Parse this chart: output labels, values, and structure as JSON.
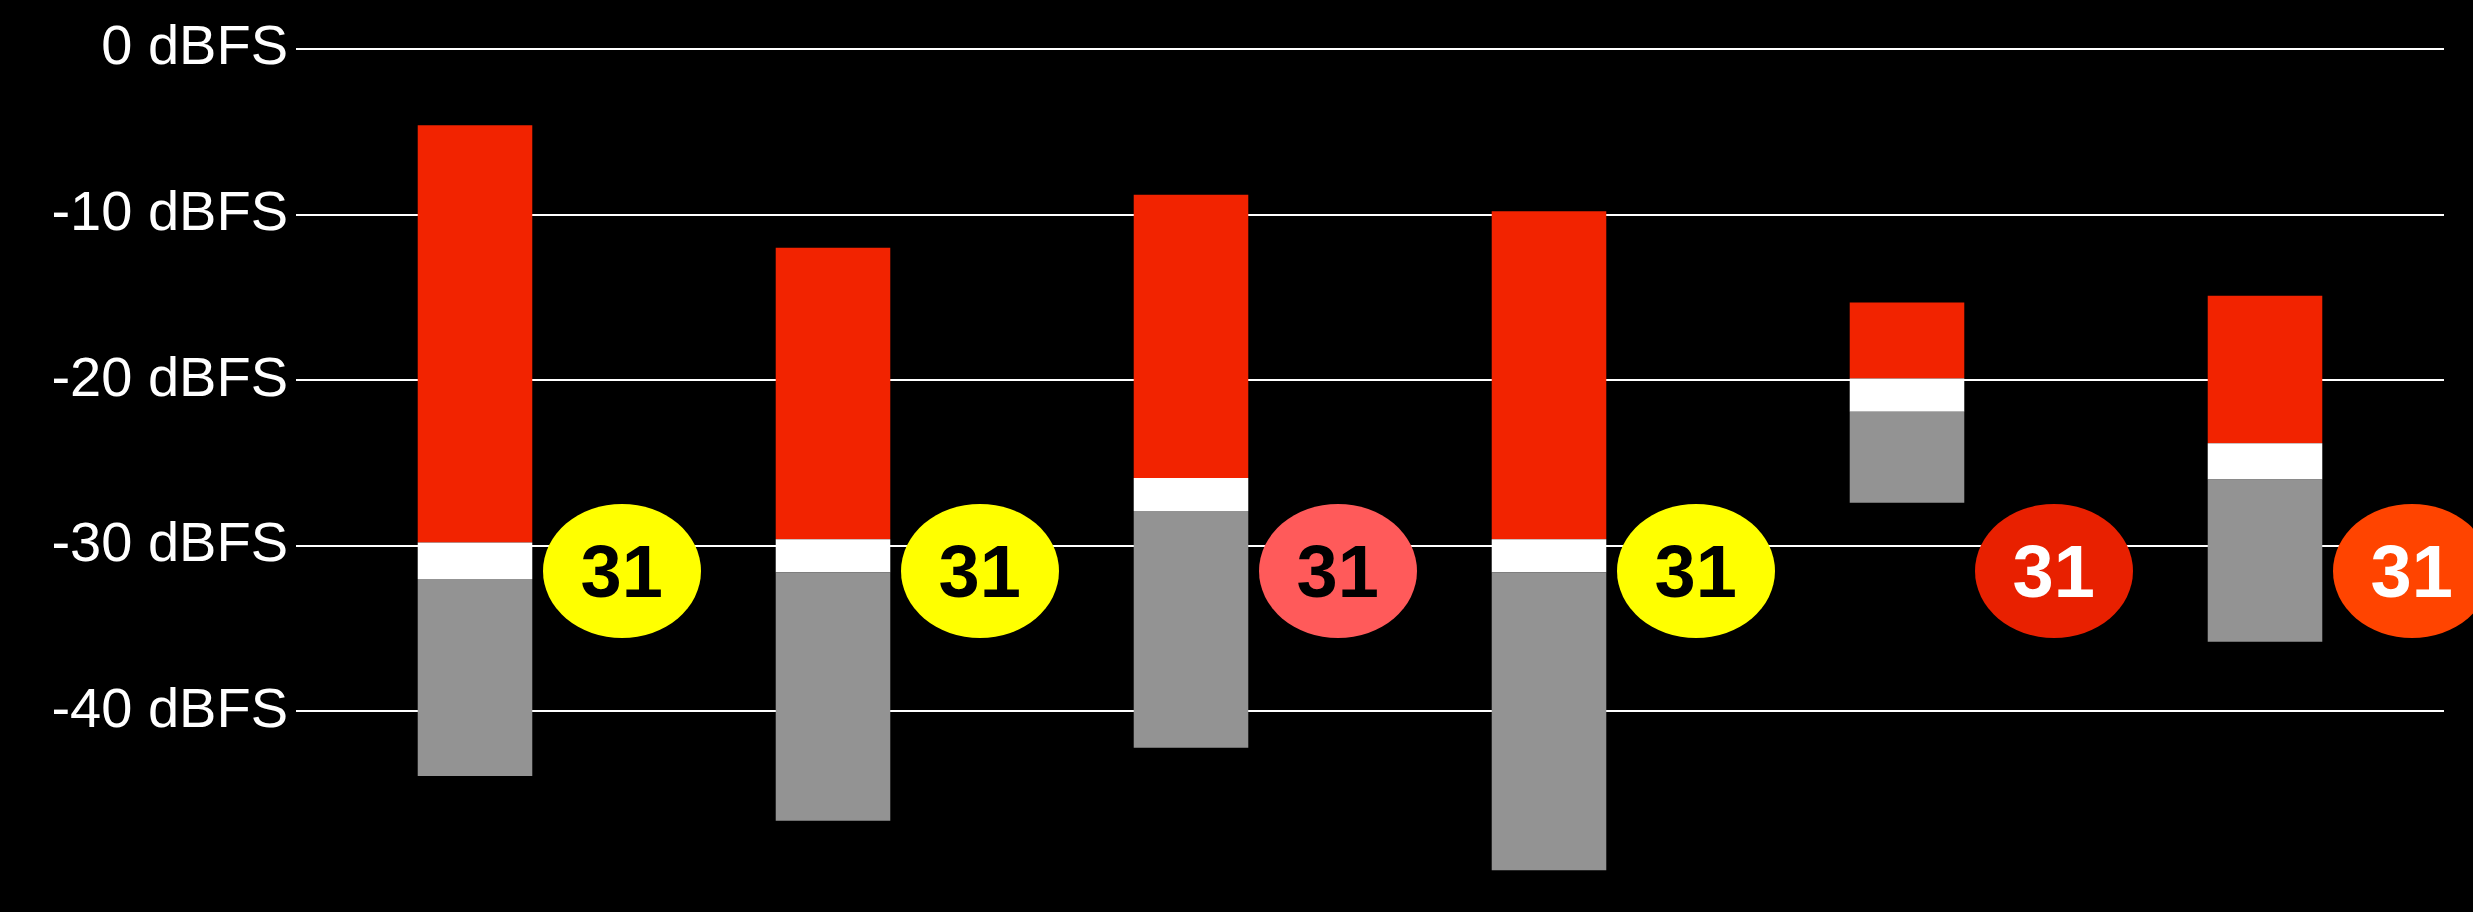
{
  "chart_data": {
    "type": "bar",
    "categories": [
      null,
      null,
      null,
      null,
      null,
      null
    ],
    "series": [
      {
        "color": "#939393",
        "base": [
          -43.9,
          -46.6,
          -42.2,
          -49.6,
          -27.4,
          -35.8
        ],
        "values": [
          11.9,
          15.0,
          14.3,
          18.0,
          5.5,
          9.8
        ]
      },
      {
        "color": "#ffffff",
        "base": [
          -32.0,
          -31.6,
          -27.9,
          -31.6,
          -21.9,
          -26.0
        ],
        "values": [
          2.2,
          2.0,
          2.0,
          2.0,
          2.0,
          2.2
        ]
      },
      {
        "color": "#f22300",
        "base": [
          -29.8,
          -29.6,
          -25.9,
          -29.6,
          -19.9,
          -23.8
        ],
        "values": [
          25.2,
          17.6,
          17.1,
          19.8,
          4.6,
          8.9
        ]
      }
    ],
    "ylim": [
      -49.6,
      0
    ],
    "yticks": [
      {
        "value": 0,
        "label": "0 dBFS"
      },
      {
        "value": -10,
        "label": "-10 dBFS"
      },
      {
        "value": -20,
        "label": "-20 dBFS"
      },
      {
        "value": -30,
        "label": "-30 dBFS"
      },
      {
        "value": -40,
        "label": "-40 dBFS"
      }
    ],
    "grid": "y",
    "annotations": [
      "31",
      "31",
      "31",
      "31",
      "31",
      "31"
    ]
  }
}
